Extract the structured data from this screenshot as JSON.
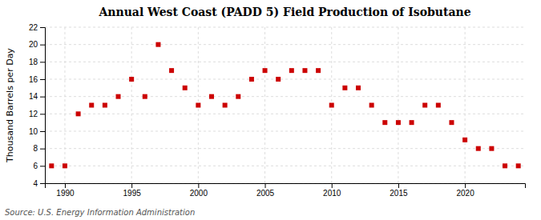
{
  "chart_data": {
    "type": "scatter",
    "title": "Annual West Coast (PADD 5) Field Production of Isobutane",
    "ylabel": "Thousand Barrels per Day",
    "annotation": "Source: U.S. Energy Information Administration",
    "x": [
      1989,
      1990,
      1991,
      1992,
      1993,
      1994,
      1995,
      1996,
      1997,
      1998,
      1999,
      2000,
      2001,
      2002,
      2003,
      2004,
      2005,
      2006,
      2007,
      2008,
      2009,
      2010,
      2011,
      2012,
      2013,
      2014,
      2015,
      2016,
      2017,
      2018,
      2019,
      2020,
      2021,
      2022,
      2023,
      2024
    ],
    "values": [
      6,
      6,
      12,
      13,
      13,
      14,
      16,
      14,
      20,
      17,
      15,
      13,
      14,
      13,
      14,
      16,
      17,
      16,
      17,
      17,
      17,
      13,
      15,
      15,
      13,
      11,
      11,
      11,
      13,
      13,
      11,
      9,
      8,
      8,
      6,
      6
    ],
    "color": "#cc0000",
    "marker": "square",
    "xlim": [
      1988.5,
      2024.5
    ],
    "xticks": [
      1990,
      1995,
      2000,
      2005,
      2010,
      2015,
      2020
    ],
    "ylim": [
      4,
      22
    ],
    "yticks": [
      4,
      6,
      8,
      10,
      12,
      14,
      16,
      18,
      20,
      22
    ],
    "grid": true
  }
}
